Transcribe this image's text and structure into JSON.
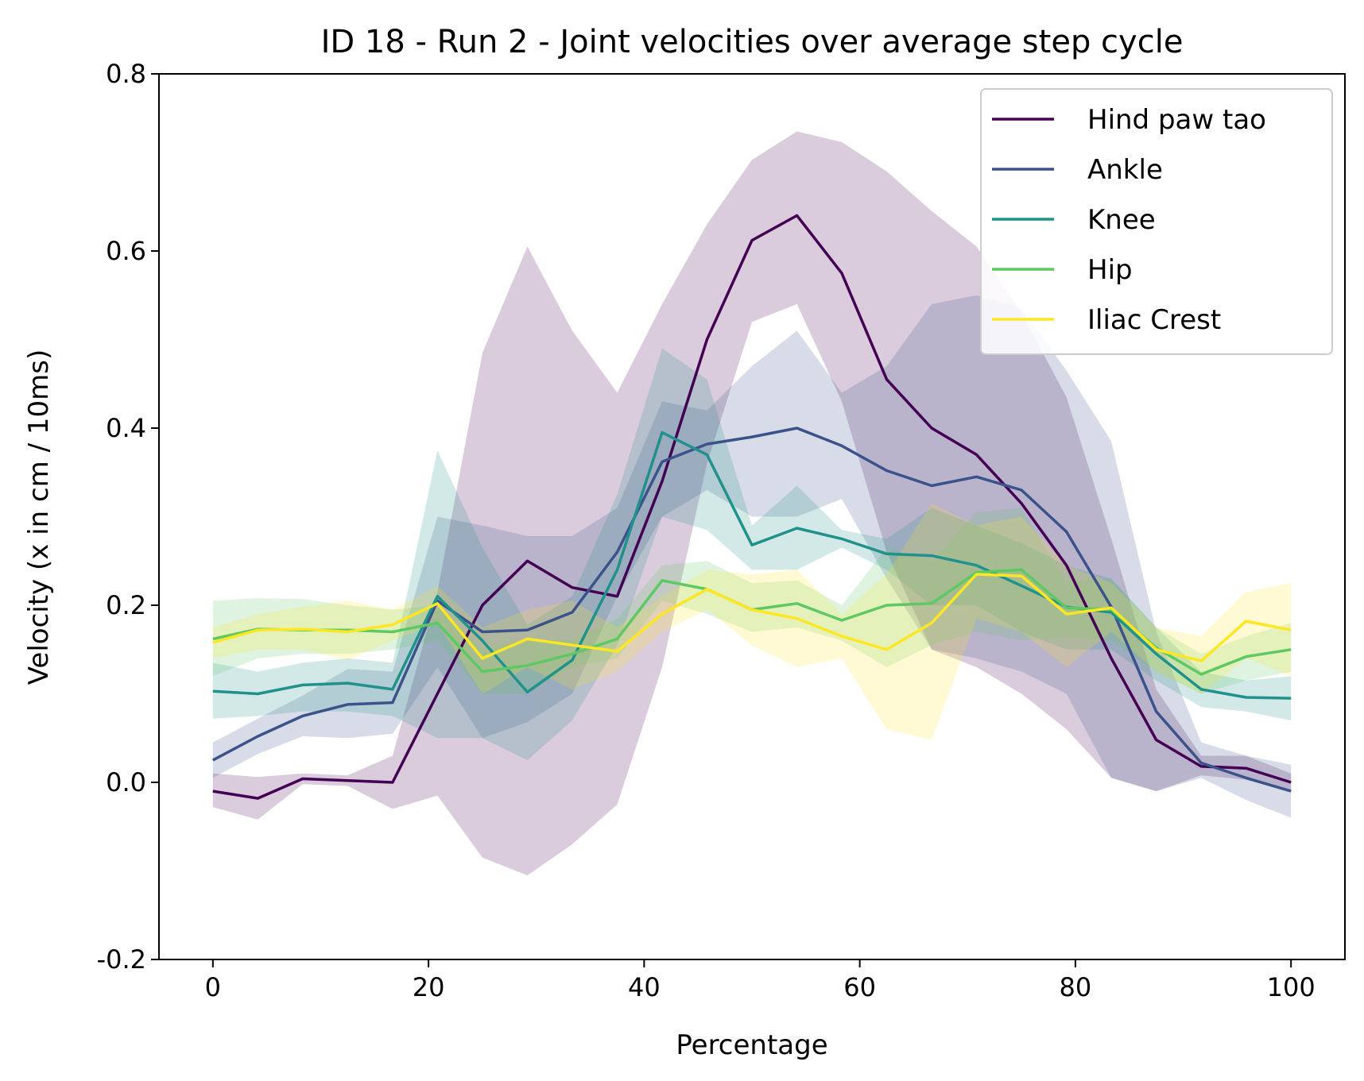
{
  "chart_data": {
    "type": "line",
    "title": "ID 18 - Run 2 - Joint velocities over average step cycle",
    "xlabel": "Percentage",
    "ylabel": "Velocity (x in cm / 10ms)",
    "xlim": [
      -5,
      105
    ],
    "ylim": [
      -0.2,
      0.8
    ],
    "xticks": [
      0,
      20,
      40,
      60,
      80,
      100
    ],
    "xtick_labels": [
      "0",
      "20",
      "40",
      "60",
      "80",
      "100"
    ],
    "yticks": [
      -0.2,
      0.0,
      0.2,
      0.4,
      0.6,
      0.8
    ],
    "ytick_labels": [
      "-0.2",
      "0.0",
      "0.2",
      "0.4",
      "0.6",
      "0.8"
    ],
    "grid": false,
    "legend_position": "top-right",
    "x": [
      0,
      4.17,
      8.33,
      12.5,
      16.67,
      20.83,
      25,
      29.17,
      33.33,
      37.5,
      41.67,
      45.83,
      50,
      54.17,
      58.33,
      62.5,
      66.67,
      70.83,
      75,
      79.17,
      83.33,
      87.5,
      91.67,
      95.83,
      100
    ],
    "series": [
      {
        "name": "Hind paw tao",
        "color": "#440154",
        "values": [
          -0.01,
          -0.018,
          0.004,
          0.002,
          0.0,
          0.1,
          0.2,
          0.25,
          0.22,
          0.21,
          0.34,
          0.5,
          0.612,
          0.64,
          0.575,
          0.455,
          0.4,
          0.37,
          0.315,
          0.245,
          0.14,
          0.048,
          0.018,
          0.016,
          0.0
        ],
        "lower": [
          -0.028,
          -0.042,
          -0.002,
          -0.004,
          -0.03,
          -0.015,
          -0.085,
          -0.105,
          -0.07,
          -0.025,
          0.13,
          0.36,
          0.52,
          0.54,
          0.43,
          0.26,
          0.15,
          0.13,
          0.1,
          0.06,
          0.005,
          -0.01,
          0.008,
          0.003,
          -0.01
        ],
        "upper": [
          0.01,
          0.006,
          0.01,
          0.008,
          0.03,
          0.215,
          0.485,
          0.605,
          0.51,
          0.44,
          0.54,
          0.63,
          0.703,
          0.735,
          0.723,
          0.69,
          0.645,
          0.605,
          0.53,
          0.435,
          0.275,
          0.105,
          0.03,
          0.03,
          0.01
        ]
      },
      {
        "name": "Ankle",
        "color": "#3b528b",
        "values": [
          0.025,
          0.052,
          0.075,
          0.088,
          0.09,
          0.205,
          0.17,
          0.172,
          0.192,
          0.26,
          0.362,
          0.382,
          0.39,
          0.4,
          0.38,
          0.352,
          0.335,
          0.345,
          0.33,
          0.283,
          0.198,
          0.08,
          0.022,
          0.005,
          -0.01
        ],
        "lower": [
          0.005,
          0.032,
          0.052,
          0.05,
          0.055,
          0.13,
          0.05,
          0.068,
          0.1,
          0.21,
          0.3,
          0.33,
          0.3,
          0.3,
          0.32,
          0.23,
          0.15,
          0.14,
          0.125,
          0.1,
          0.005,
          -0.01,
          0.005,
          -0.02,
          -0.04
        ],
        "upper": [
          0.045,
          0.072,
          0.098,
          0.128,
          0.125,
          0.3,
          0.29,
          0.278,
          0.278,
          0.31,
          0.43,
          0.42,
          0.47,
          0.51,
          0.44,
          0.47,
          0.54,
          0.55,
          0.535,
          0.465,
          0.385,
          0.17,
          0.045,
          0.03,
          0.02
        ]
      },
      {
        "name": "Knee",
        "color": "#21918c",
        "values": [
          0.103,
          0.1,
          0.11,
          0.112,
          0.105,
          0.21,
          0.16,
          0.102,
          0.138,
          0.24,
          0.395,
          0.37,
          0.268,
          0.287,
          0.275,
          0.258,
          0.256,
          0.245,
          0.222,
          0.198,
          0.192,
          0.145,
          0.105,
          0.096,
          0.095
        ],
        "lower": [
          0.072,
          0.075,
          0.08,
          0.08,
          0.075,
          0.05,
          0.05,
          0.025,
          0.07,
          0.155,
          0.3,
          0.285,
          0.24,
          0.24,
          0.265,
          0.24,
          0.2,
          0.2,
          0.17,
          0.15,
          0.15,
          0.115,
          0.085,
          0.08,
          0.07
        ],
        "upper": [
          0.135,
          0.125,
          0.135,
          0.14,
          0.135,
          0.375,
          0.265,
          0.178,
          0.21,
          0.325,
          0.49,
          0.455,
          0.29,
          0.335,
          0.285,
          0.275,
          0.31,
          0.29,
          0.27,
          0.245,
          0.23,
          0.175,
          0.125,
          0.115,
          0.12
        ]
      },
      {
        "name": "Hip",
        "color": "#5ec962",
        "values": [
          0.162,
          0.173,
          0.172,
          0.172,
          0.17,
          0.18,
          0.125,
          0.132,
          0.145,
          0.162,
          0.228,
          0.218,
          0.195,
          0.202,
          0.183,
          0.2,
          0.202,
          0.237,
          0.24,
          0.197,
          0.195,
          0.152,
          0.122,
          0.142,
          0.15
        ],
        "lower": [
          0.12,
          0.14,
          0.145,
          0.145,
          0.15,
          0.16,
          0.1,
          0.1,
          0.13,
          0.14,
          0.205,
          0.19,
          0.17,
          0.175,
          0.16,
          0.13,
          0.155,
          0.17,
          0.16,
          0.165,
          0.16,
          0.125,
          0.1,
          0.115,
          0.125
        ],
        "upper": [
          0.205,
          0.208,
          0.207,
          0.2,
          0.195,
          0.2,
          0.15,
          0.162,
          0.16,
          0.185,
          0.245,
          0.25,
          0.225,
          0.228,
          0.2,
          0.265,
          0.25,
          0.305,
          0.31,
          0.225,
          0.23,
          0.175,
          0.145,
          0.165,
          0.18
        ]
      },
      {
        "name": "Iliac Crest",
        "color": "#fde725",
        "values": [
          0.158,
          0.172,
          0.173,
          0.17,
          0.178,
          0.202,
          0.14,
          0.162,
          0.155,
          0.148,
          0.19,
          0.218,
          0.195,
          0.185,
          0.165,
          0.15,
          0.18,
          0.235,
          0.233,
          0.19,
          0.197,
          0.15,
          0.137,
          0.182,
          0.172
        ],
        "lower": [
          0.14,
          0.15,
          0.15,
          0.138,
          0.16,
          0.18,
          0.1,
          0.13,
          0.105,
          0.125,
          0.17,
          0.195,
          0.155,
          0.13,
          0.14,
          0.06,
          0.048,
          0.185,
          0.17,
          0.13,
          0.17,
          0.125,
          0.1,
          0.14,
          0.12
        ],
        "upper": [
          0.175,
          0.19,
          0.198,
          0.205,
          0.195,
          0.222,
          0.175,
          0.195,
          0.205,
          0.175,
          0.21,
          0.24,
          0.235,
          0.24,
          0.19,
          0.235,
          0.315,
          0.29,
          0.3,
          0.245,
          0.225,
          0.175,
          0.165,
          0.215,
          0.225
        ]
      }
    ]
  }
}
